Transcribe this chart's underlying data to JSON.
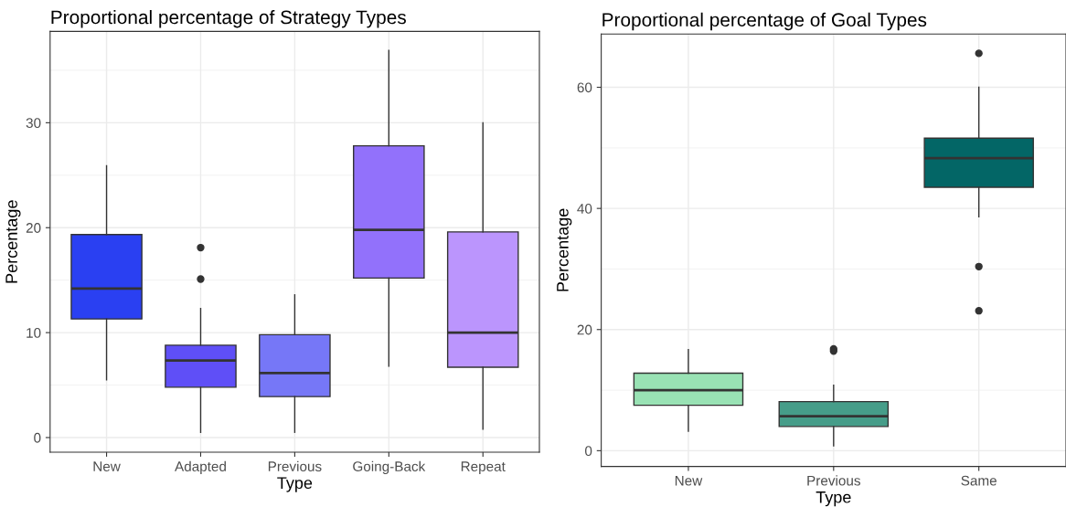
{
  "chart_data": [
    {
      "type": "box",
      "title": "Proportional percentage of Strategy Types",
      "xlabel": "Type",
      "ylabel": "Percentage",
      "categories": [
        "New",
        "Adapted",
        "Previous",
        "Going-Back",
        "Repeat"
      ],
      "colors": [
        "#2a40f2",
        "#5f4ff7",
        "#7677f7",
        "#9271fb",
        "#bb95fd"
      ],
      "ylim": [
        -1.4,
        38.7
      ],
      "yticks": [
        0,
        10,
        20,
        30
      ],
      "grid": true,
      "legend": false,
      "boxes": [
        {
          "low": 5.5,
          "q1": 11.3,
          "median": 14.2,
          "q3": 19.35,
          "high": 25.9
        },
        {
          "low": 0.5,
          "q1": 4.8,
          "median": 7.35,
          "q3": 8.8,
          "high": 12.3,
          "outliers": [
            18.1,
            15.1
          ]
        },
        {
          "low": 0.5,
          "q1": 3.9,
          "median": 6.15,
          "q3": 9.8,
          "high": 13.6
        },
        {
          "low": 6.8,
          "q1": 15.2,
          "median": 19.8,
          "q3": 27.8,
          "high": 36.9
        },
        {
          "low": 0.8,
          "q1": 6.7,
          "median": 10.0,
          "q3": 19.6,
          "high": 30.0
        }
      ]
    },
    {
      "type": "box",
      "title": "Proportional percentage of Goal Types",
      "xlabel": "Type",
      "ylabel": "Percentage",
      "categories": [
        "New",
        "Previous",
        "Same"
      ],
      "colors": [
        "#99e2b4",
        "#469d89",
        "#036666"
      ],
      "ylim": [
        -2.6,
        68.8
      ],
      "yticks": [
        0,
        20,
        40,
        60
      ],
      "grid": true,
      "legend": false,
      "boxes": [
        {
          "low": 3.2,
          "q1": 7.5,
          "median": 10.0,
          "q3": 12.8,
          "high": 16.7
        },
        {
          "low": 0.8,
          "q1": 4.0,
          "median": 5.7,
          "q3": 8.1,
          "high": 10.8,
          "outliers": [
            16.8,
            16.45
          ]
        },
        {
          "low": 38.6,
          "q1": 43.5,
          "median": 48.3,
          "q3": 51.6,
          "high": 60.0,
          "outliers": [
            65.6,
            30.4,
            23.1
          ]
        }
      ]
    }
  ]
}
